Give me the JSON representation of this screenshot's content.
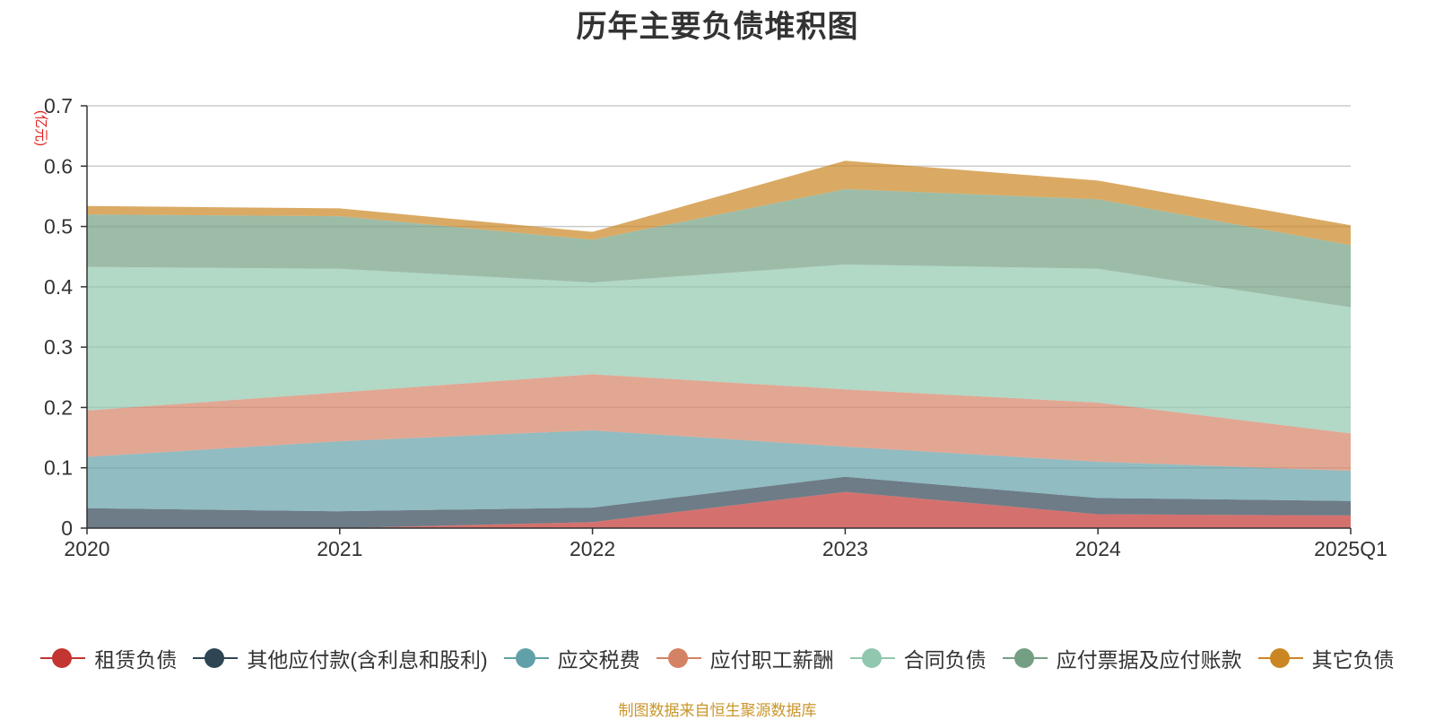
{
  "chart_data": {
    "type": "area",
    "stacked": true,
    "title": "历年主要负债堆积图",
    "ylabel": "(亿元)",
    "xlabel": "",
    "categories": [
      "2020",
      "2021",
      "2022",
      "2023",
      "2024",
      "2025Q1"
    ],
    "ylim": [
      0,
      0.7
    ],
    "yticks": [
      0,
      0.1,
      0.2,
      0.3,
      0.4,
      0.5,
      0.6,
      0.7
    ],
    "ytick_labels": [
      "0",
      "0.1",
      "0.2",
      "0.3",
      "0.4",
      "0.5",
      "0.6",
      "0.7"
    ],
    "grid": true,
    "legend_position": "bottom",
    "series": [
      {
        "name": "租赁负债",
        "values": [
          0,
          0,
          0.01,
          0.06,
          0.023,
          0.021
        ],
        "color": "#c23531"
      },
      {
        "name": "其他应付款(含利息和股利)",
        "values": [
          0.033,
          0.028,
          0.024,
          0.025,
          0.027,
          0.024
        ],
        "color": "#2f4554"
      },
      {
        "name": "应交税费",
        "values": [
          0.085,
          0.116,
          0.128,
          0.05,
          0.06,
          0.05
        ],
        "color": "#61a0a8"
      },
      {
        "name": "应付职工薪酬",
        "values": [
          0.077,
          0.081,
          0.093,
          0.095,
          0.098,
          0.062
        ],
        "color": "#d48265"
      },
      {
        "name": "合同负债",
        "values": [
          0.238,
          0.205,
          0.152,
          0.207,
          0.222,
          0.209
        ],
        "color": "#91c7ae"
      },
      {
        "name": "应付票据及应付账款",
        "values": [
          0.087,
          0.087,
          0.071,
          0.125,
          0.115,
          0.103
        ],
        "color": "#749f83"
      },
      {
        "name": "其它负债",
        "values": [
          0.014,
          0.013,
          0.013,
          0.047,
          0.031,
          0.033
        ],
        "color": "#ca8622"
      }
    ]
  },
  "source_note": "制图数据来自恒生聚源数据库"
}
